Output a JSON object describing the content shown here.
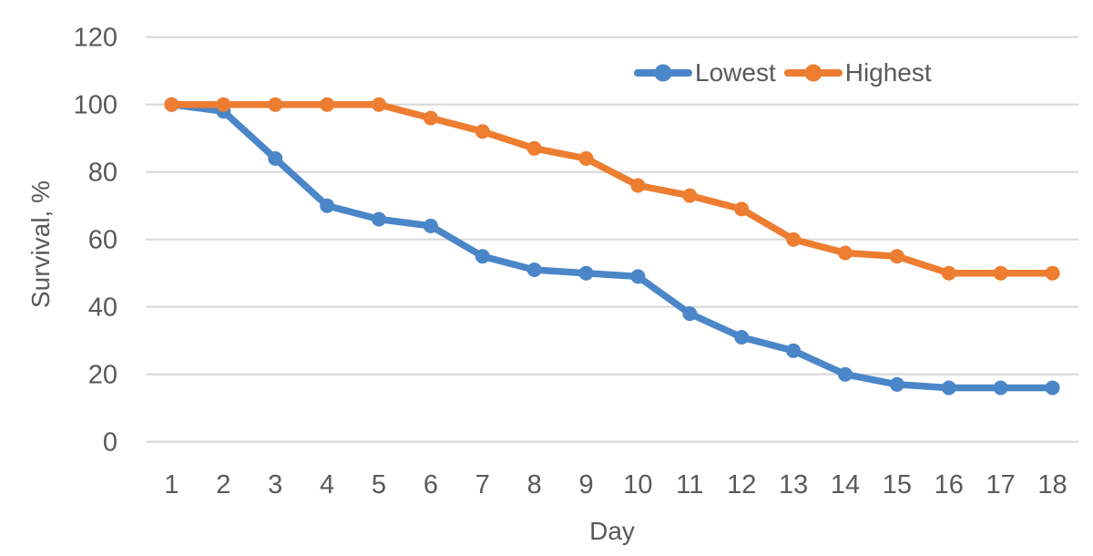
{
  "chart_data": {
    "type": "line",
    "title": "",
    "xlabel": "Day",
    "ylabel": "Survival, %",
    "x": [
      "1",
      "2",
      "3",
      "4",
      "5",
      "6",
      "7",
      "8",
      "9",
      "10",
      "11",
      "12",
      "13",
      "14",
      "15",
      "16",
      "17",
      "18"
    ],
    "series": [
      {
        "name": "Lowest",
        "color": "#4A86C8",
        "values": [
          100,
          98,
          84,
          70,
          66,
          64,
          55,
          51,
          50,
          49,
          38,
          31,
          27,
          20,
          17,
          16,
          16,
          16
        ]
      },
      {
        "name": "Highest",
        "color": "#ED7D31",
        "values": [
          100,
          100,
          100,
          100,
          100,
          96,
          92,
          87,
          84,
          76,
          73,
          69,
          60,
          56,
          55,
          50,
          50,
          50
        ]
      }
    ],
    "ylim": [
      0,
      120
    ],
    "ytick_step": 20,
    "y_ticks": [
      "0",
      "20",
      "40",
      "60",
      "80",
      "100",
      "120"
    ],
    "grid": true,
    "legend_position": "top-right-inside"
  },
  "colors": {
    "gridline": "#D9D9D9",
    "tick_text": "#595959",
    "background": "#FFFFFF"
  }
}
